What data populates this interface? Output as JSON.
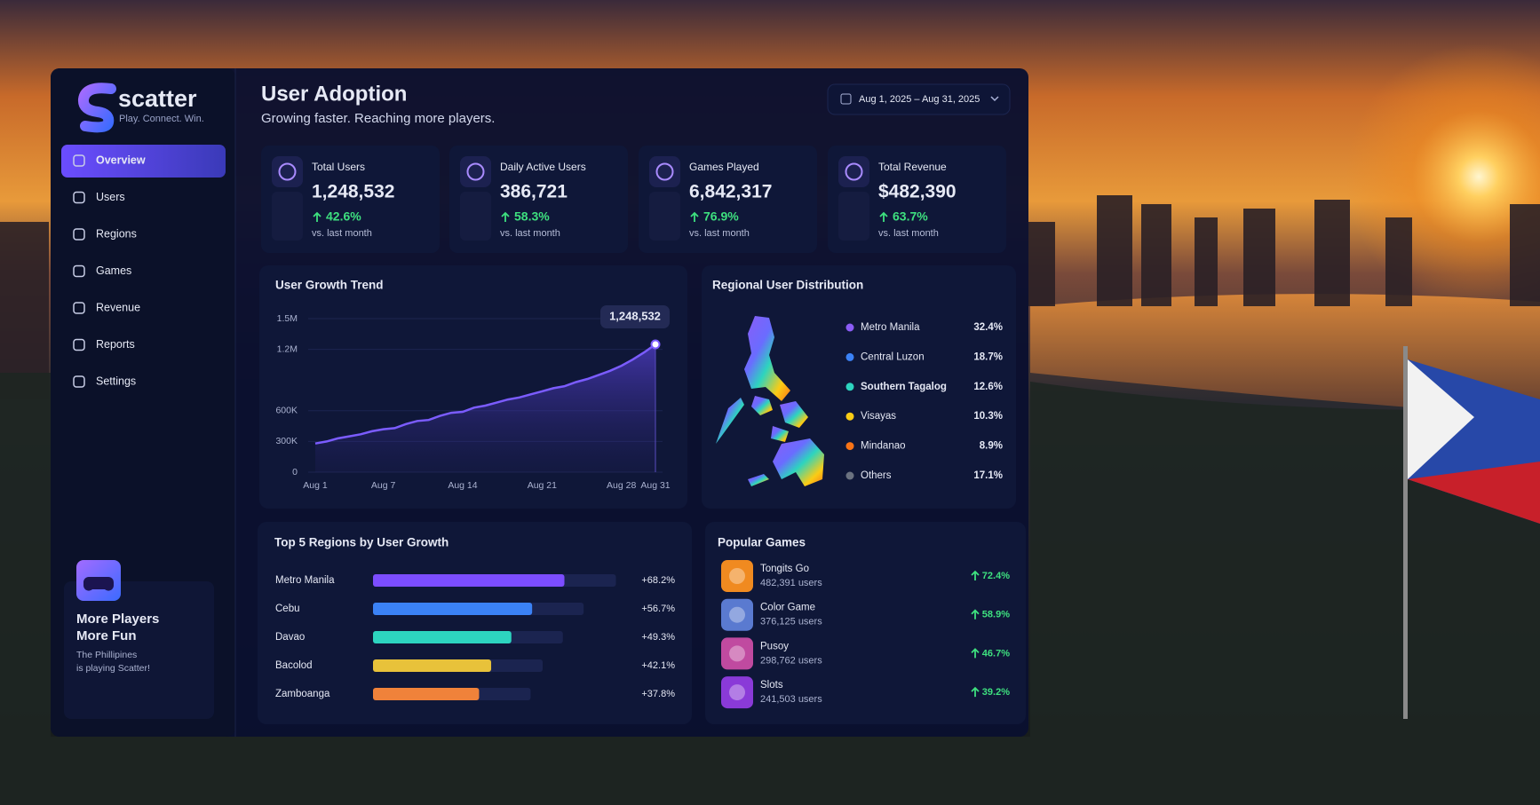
{
  "brand": {
    "name": "scatter",
    "tagline": "Play. Connect. Win."
  },
  "nav": [
    "Overview",
    "Users",
    "Regions",
    "Games",
    "Revenue",
    "Reports",
    "Settings"
  ],
  "promo": {
    "title_lines": [
      "More Players",
      "More Fun"
    ],
    "text_lines": [
      "The Phillipines",
      "is playing Scatter!"
    ]
  },
  "header": {
    "title": "User Adoption",
    "subtitle": "Growing faster. Reaching more players.",
    "date_range": "Aug 1, 2025 – Aug 31, 2025"
  },
  "kpis": [
    {
      "label": "Total Users",
      "value": "1,248,532",
      "change": "42.6%",
      "note": "vs. last month"
    },
    {
      "label": "Daily Active Users",
      "value": "386,721",
      "change": "58.3%",
      "note": "vs. last month"
    },
    {
      "label": "Games Played",
      "value": "6,842,317",
      "change": "76.9%",
      "note": "vs. last month"
    },
    {
      "label": "Total Revenue",
      "value": "$482,390",
      "change": "63.7%",
      "note": "vs. last month"
    }
  ],
  "growth_chart": {
    "type": "line",
    "title": "User Growth Trend",
    "categories": [
      "Aug 1",
      null,
      null,
      null,
      null,
      null,
      "Aug 7",
      null,
      null,
      null,
      null,
      null,
      null,
      "Aug 14",
      null,
      null,
      null,
      null,
      null,
      null,
      "Aug 21",
      null,
      null,
      null,
      null,
      null,
      null,
      "Aug 28",
      null,
      null,
      "Aug 31"
    ],
    "values": [
      280000,
      300000,
      330000,
      350000,
      370000,
      400000,
      420000,
      430000,
      470000,
      500000,
      510000,
      550000,
      580000,
      590000,
      630000,
      650000,
      680000,
      710000,
      730000,
      760000,
      790000,
      820000,
      840000,
      880000,
      910000,
      950000,
      990000,
      1040000,
      1100000,
      1170000,
      1248532
    ],
    "color": "#7b5cff",
    "ylim": [
      0,
      1500000
    ],
    "yticks": [
      0,
      {
        "value": 300000,
        "label": "300K"
      },
      {
        "value": 600000,
        "label": "600K"
      },
      {
        "value": 1200000,
        "label": "1.2M"
      },
      {
        "value": 1500000,
        "label": "1.5M"
      }
    ],
    "annotation": "1,248,532"
  },
  "regional": {
    "title": "Regional User Distribution",
    "items": [
      {
        "name": "Metro Manila",
        "color": "#8b5cf6",
        "share": "32.4%"
      },
      {
        "name": "Central Luzon",
        "color": "#3b82f6",
        "share": "18.7%"
      },
      {
        "name": "Southern Tagalog",
        "color": "#2dd4bf",
        "share": "12.6%"
      },
      {
        "name": "Visayas",
        "color": "#facc15",
        "share": "10.3%"
      },
      {
        "name": "Mindanao",
        "color": "#f97316",
        "share": "8.9%"
      },
      {
        "name": "Others",
        "color": "#6b7280",
        "share": "17.1%"
      }
    ]
  },
  "top_regions": {
    "type": "bar",
    "title": "Top 5 Regions by User Growth",
    "categories": [
      "Metro Manila",
      "Cebu",
      "Davao",
      "Bacolod",
      "Zamboanga"
    ],
    "values": [
      68.2,
      56.7,
      49.3,
      42.1,
      37.8
    ],
    "value_labels": [
      "+68.2%",
      "+56.7%",
      "+49.3%",
      "+42.1%",
      "+37.8%"
    ],
    "colors": [
      "#7c4dff",
      "#3b82f6",
      "#2dd4bf",
      "#e8c23a",
      "#f0823a"
    ]
  },
  "popular_games": {
    "title": "Popular Games",
    "items": [
      {
        "name": "Tongits Go",
        "users": "482,391 users",
        "growth": "72.4%"
      },
      {
        "name": "Color Game",
        "users": "376,125 users",
        "growth": "58.9%"
      },
      {
        "name": "Pusoy",
        "users": "298,762 users",
        "growth": "46.7%"
      },
      {
        "name": "Slots",
        "users": "241,503 users",
        "growth": "39.2%"
      }
    ]
  }
}
